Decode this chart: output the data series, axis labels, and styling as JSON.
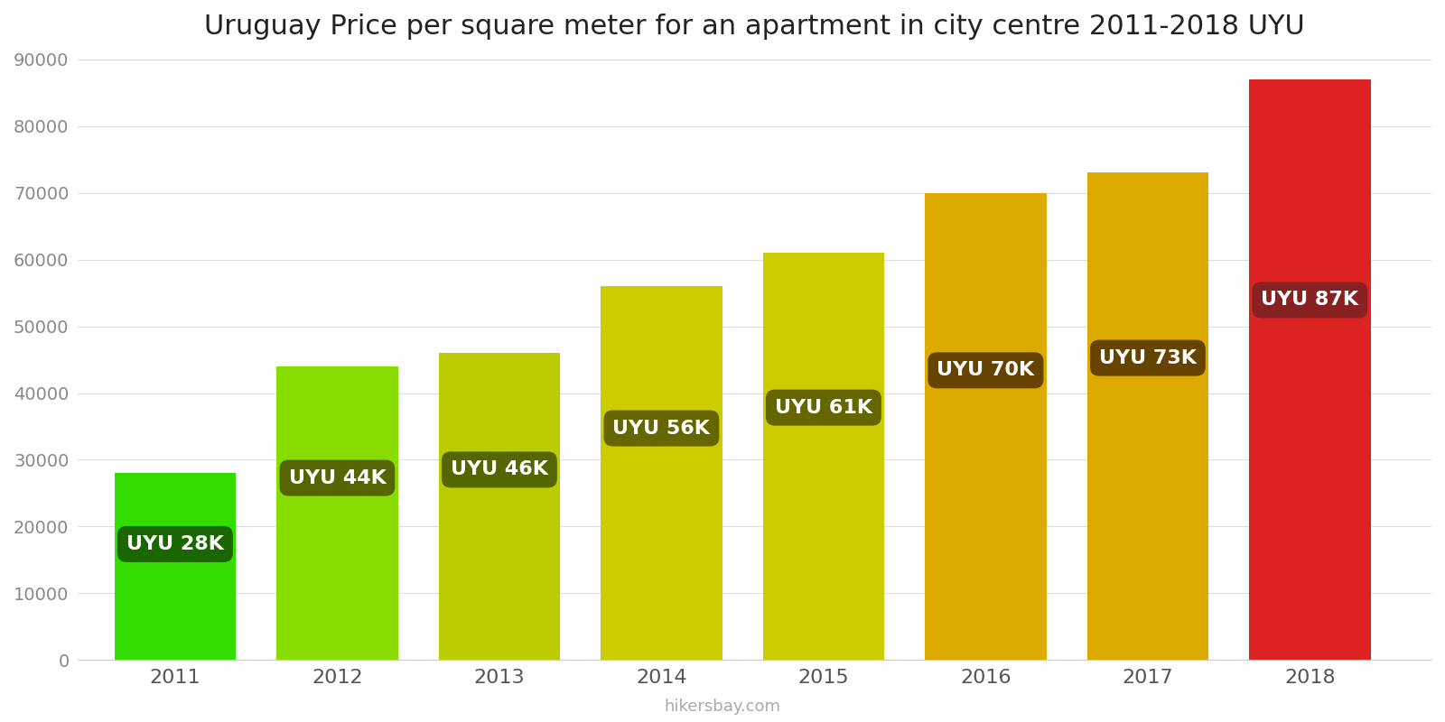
{
  "title": "Uruguay Price per square meter for an apartment in city centre 2011-2018 UYU",
  "years": [
    2011,
    2012,
    2013,
    2014,
    2015,
    2016,
    2017,
    2018
  ],
  "values": [
    28000,
    44000,
    46000,
    56000,
    61000,
    70000,
    73000,
    87000
  ],
  "labels": [
    "UYU 28K",
    "UYU 44K",
    "UYU 46K",
    "UYU 56K",
    "UYU 61K",
    "UYU 70K",
    "UYU 73K",
    "UYU 87K"
  ],
  "bar_colors": [
    "#33dd00",
    "#88dd00",
    "#bbcc00",
    "#cccc00",
    "#cccc00",
    "#ddaa00",
    "#ddaa00",
    "#dd2222"
  ],
  "label_box_colors": [
    "#1a6600",
    "#556600",
    "#556600",
    "#666600",
    "#666600",
    "#664400",
    "#664400",
    "#882222"
  ],
  "ylim": [
    0,
    90000
  ],
  "yticks": [
    0,
    10000,
    20000,
    30000,
    40000,
    50000,
    60000,
    70000,
    80000,
    90000
  ],
  "background_color": "#ffffff",
  "label_text_color": "#ffffff",
  "title_fontsize": 22,
  "footer_text": "hikersbay.com",
  "footer_color": "#aaaaaa"
}
